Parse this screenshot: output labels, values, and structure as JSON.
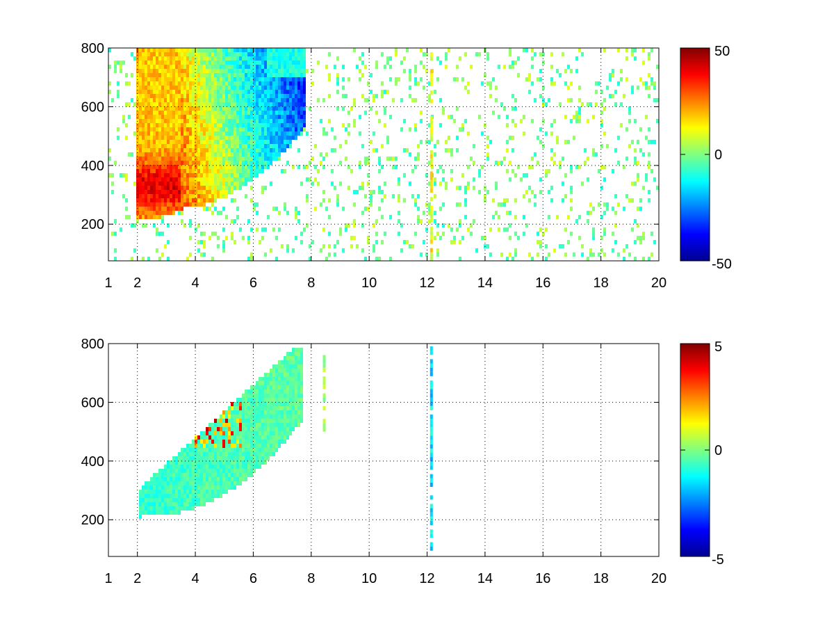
{
  "chart_data": [
    {
      "type": "heatmap",
      "title": "",
      "xlabel": "",
      "ylabel": "",
      "xlim": [
        1,
        20
      ],
      "ylim": [
        75,
        800
      ],
      "xticks": [
        1,
        2,
        4,
        6,
        8,
        10,
        12,
        14,
        16,
        18,
        20
      ],
      "yticks": [
        200,
        400,
        600,
        800
      ],
      "grid": true,
      "grid_style": "dotted",
      "colorbar": {
        "min": -50,
        "max": 50,
        "ticks": [
          -50,
          0,
          50
        ],
        "colormap": "jet"
      },
      "features": [
        {
          "name": "positive band",
          "x_range": [
            2,
            6
          ],
          "y_range": [
            200,
            800
          ],
          "value": 30
        },
        {
          "name": "negative band",
          "x_range": [
            4,
            8
          ],
          "y_range": [
            250,
            800
          ],
          "value": -35
        },
        {
          "name": "vertical line",
          "x": 12.15,
          "y_range": [
            75,
            800
          ],
          "value": 12
        }
      ]
    },
    {
      "type": "heatmap",
      "title": "",
      "xlabel": "",
      "ylabel": "",
      "xlim": [
        1,
        20
      ],
      "ylim": [
        75,
        800
      ],
      "xticks": [
        1,
        2,
        4,
        6,
        8,
        10,
        12,
        14,
        16,
        18,
        20
      ],
      "yticks": [
        200,
        400,
        600,
        800
      ],
      "grid": true,
      "grid_style": "dotted",
      "colorbar": {
        "min": -5,
        "max": 5,
        "ticks": [
          -5,
          0,
          5
        ],
        "colormap": "jet"
      },
      "features": [
        {
          "name": "main region",
          "x_range": [
            2,
            7.7
          ],
          "y_range": [
            200,
            790
          ],
          "value": 0
        },
        {
          "name": "positive patches",
          "x_range": [
            2.7,
            5.5
          ],
          "y_range": [
            450,
            780
          ],
          "value": 3
        },
        {
          "name": "sparse column",
          "x": 8.45,
          "y_range": [
            500,
            750
          ],
          "value": 0.5
        },
        {
          "name": "sparse column",
          "x": 12.15,
          "y_range": [
            80,
            780
          ],
          "value": -1.5
        }
      ]
    }
  ]
}
